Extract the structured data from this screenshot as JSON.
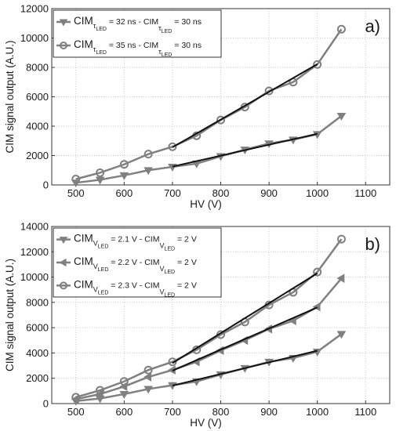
{
  "chart_data": [
    {
      "type": "line",
      "panel_label": "a)",
      "xlabel": "HV (V)",
      "ylabel": "CIM signal output (A.U.)",
      "xlim": [
        450,
        1150
      ],
      "ylim": [
        0,
        12000
      ],
      "xticks": [
        500,
        600,
        700,
        800,
        900,
        1000,
        1100
      ],
      "yticks": [
        0,
        2000,
        4000,
        6000,
        8000,
        10000,
        12000
      ],
      "grid": true,
      "legend_position": "top-left",
      "series": [
        {
          "legend": {
            "base": "CIM",
            "sub1": "τ",
            "sub2": "LED",
            "a": " = 32 ns - CIM",
            "b": " = 30 ns"
          },
          "marker": "triangle-down",
          "color": "#808080",
          "x": [
            500,
            550,
            600,
            650,
            700,
            750,
            800,
            850,
            900,
            950,
            1000,
            1050
          ],
          "y": [
            150,
            350,
            650,
            1000,
            1230,
            1450,
            1950,
            2400,
            2820,
            3080,
            3450,
            4700
          ],
          "fit": {
            "x": [
              700,
              1000
            ],
            "y": [
              1250,
              3480
            ]
          }
        },
        {
          "legend": {
            "base": "CIM",
            "sub1": "τ",
            "sub2": "LED",
            "a": " = 35 ns - CIM",
            "b": " = 30 ns"
          },
          "marker": "circle",
          "color": "#808080",
          "x": [
            500,
            550,
            600,
            650,
            700,
            750,
            800,
            850,
            900,
            950,
            1000,
            1050
          ],
          "y": [
            400,
            830,
            1400,
            2100,
            2600,
            3350,
            4420,
            5300,
            6400,
            7000,
            8200,
            10600
          ],
          "fit": {
            "x": [
              700,
              1000
            ],
            "y": [
              2560,
              8220
            ]
          }
        }
      ]
    },
    {
      "type": "line",
      "panel_label": "b)",
      "xlabel": "HV (V)",
      "ylabel": "CIM signal output (A.U.)",
      "xlim": [
        450,
        1150
      ],
      "ylim": [
        0,
        14000
      ],
      "xticks": [
        500,
        600,
        700,
        800,
        900,
        1000,
        1100
      ],
      "yticks": [
        0,
        2000,
        4000,
        6000,
        8000,
        10000,
        12000,
        14000
      ],
      "grid": true,
      "legend_position": "top-left",
      "series": [
        {
          "legend": {
            "base": "CIM",
            "sub1": "V",
            "sub2": "LED",
            "a": " = 2.1 V - CIM",
            "b": " = 2 V"
          },
          "marker": "triangle-down",
          "color": "#808080",
          "x": [
            500,
            550,
            600,
            650,
            700,
            750,
            800,
            850,
            900,
            950,
            1000,
            1050
          ],
          "y": [
            200,
            400,
            750,
            1150,
            1450,
            1750,
            2300,
            2800,
            3300,
            3600,
            4100,
            5500
          ],
          "fit": {
            "x": [
              700,
              1000
            ],
            "y": [
              1420,
              4180
            ]
          }
        },
        {
          "legend": {
            "base": "CIM",
            "sub1": "V",
            "sub2": "LED",
            "a": " = 2.2 V - CIM",
            "b": " = 2 V"
          },
          "marker": "triangle-left",
          "color": "#808080",
          "x": [
            500,
            550,
            600,
            650,
            700,
            750,
            800,
            850,
            900,
            950,
            1000,
            1050
          ],
          "y": [
            350,
            750,
            1350,
            2100,
            2650,
            3300,
            4200,
            5000,
            5900,
            6550,
            7650,
            9900
          ],
          "fit": {
            "x": [
              700,
              1000
            ],
            "y": [
              2600,
              7600
            ]
          }
        },
        {
          "legend": {
            "base": "CIM",
            "sub1": "V",
            "sub2": "LED",
            "a": " = 2.3 V - CIM",
            "b": " = 2 V"
          },
          "marker": "circle",
          "color": "#808080",
          "x": [
            500,
            550,
            600,
            650,
            700,
            750,
            800,
            850,
            900,
            950,
            1000,
            1050
          ],
          "y": [
            500,
            1050,
            1750,
            2650,
            3300,
            4250,
            5450,
            6450,
            7800,
            8800,
            10400,
            13000
          ],
          "fit": {
            "x": [
              700,
              1000
            ],
            "y": [
              3200,
              10300
            ]
          }
        }
      ]
    }
  ]
}
